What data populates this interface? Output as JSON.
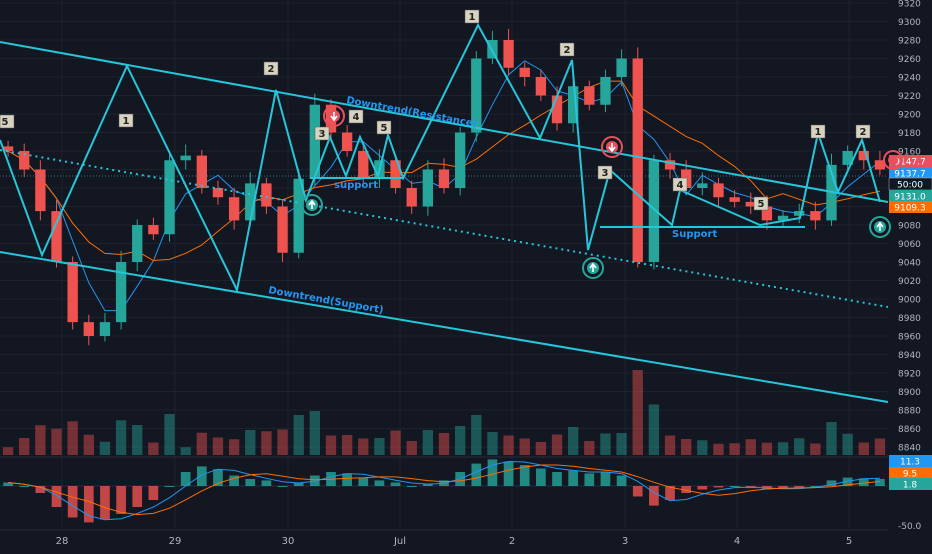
{
  "chart_data": {
    "type": "candlestick",
    "x_labels": [
      "28",
      "29",
      "30",
      "Jul",
      "2",
      "3",
      "4",
      "5"
    ],
    "y_ticks": [
      9320,
      9300,
      9280,
      9260,
      9240,
      9220,
      9200,
      9180,
      9160,
      9140,
      9120,
      9100,
      9080,
      9060,
      9040,
      9020,
      9000,
      8980,
      8960,
      8940,
      8920,
      8900,
      8880,
      8860,
      8840
    ],
    "ylim": [
      8835,
      9325
    ],
    "macd_axis_label": "-50.0",
    "price_tags": [
      {
        "label": "9147.7",
        "bg": "#e8505b"
      },
      {
        "label": "9137.7",
        "bg": "#2196f3"
      },
      {
        "label": "50:00",
        "bg": "#131722"
      },
      {
        "label": "9131.0",
        "bg": "#26a69a"
      },
      {
        "label": "9109.3",
        "bg": "#ff6d00"
      }
    ],
    "macd_tags": [
      {
        "label": "11.3",
        "bg": "#2196f3"
      },
      {
        "label": "9.5",
        "bg": "#ff6d00"
      },
      {
        "label": "1.8",
        "bg": "#26a69a"
      }
    ],
    "annotations": {
      "resistance_label": "Downtrend(Resistance)",
      "support_channel_label": "Downtrend(Support)",
      "support_label_1": "support",
      "support_label_2": "Support",
      "wave_labels": [
        "5",
        "1",
        "2",
        "3",
        "4",
        "5",
        "1",
        "2",
        "3",
        "4",
        "5",
        "1",
        "2"
      ]
    },
    "series": [
      {
        "name": "price",
        "close": [
          9160,
          9140,
          9095,
          9040,
          8975,
          8960,
          8975,
          9040,
          9080,
          9070,
          9150,
          9155,
          9120,
          9110,
          9085,
          9125,
          9100,
          9050,
          9130,
          9210,
          9180,
          9160,
          9130,
          9150,
          9120,
          9100,
          9140,
          9120,
          9180,
          9260,
          9280,
          9250,
          9240,
          9220,
          9190,
          9230,
          9210,
          9240,
          9260,
          9040,
          9150,
          9140,
          9120,
          9125,
          9110,
          9105,
          9100,
          9085,
          9090,
          9095,
          9085,
          9145,
          9160,
          9150,
          9140
        ]
      },
      {
        "name": "macd",
        "values": [
          5,
          0,
          -10,
          -30,
          -45,
          -52,
          -48,
          -40,
          -30,
          -20,
          0,
          20,
          28,
          24,
          15,
          10,
          8,
          0,
          5,
          15,
          20,
          18,
          12,
          8,
          5,
          0,
          3,
          8,
          20,
          32,
          38,
          35,
          30,
          25,
          20,
          22,
          18,
          20,
          15,
          -15,
          -28,
          -20,
          -10,
          -5,
          -2,
          0,
          -3,
          -5,
          -4,
          -2,
          0,
          8,
          12,
          11,
          10
        ]
      }
    ]
  }
}
